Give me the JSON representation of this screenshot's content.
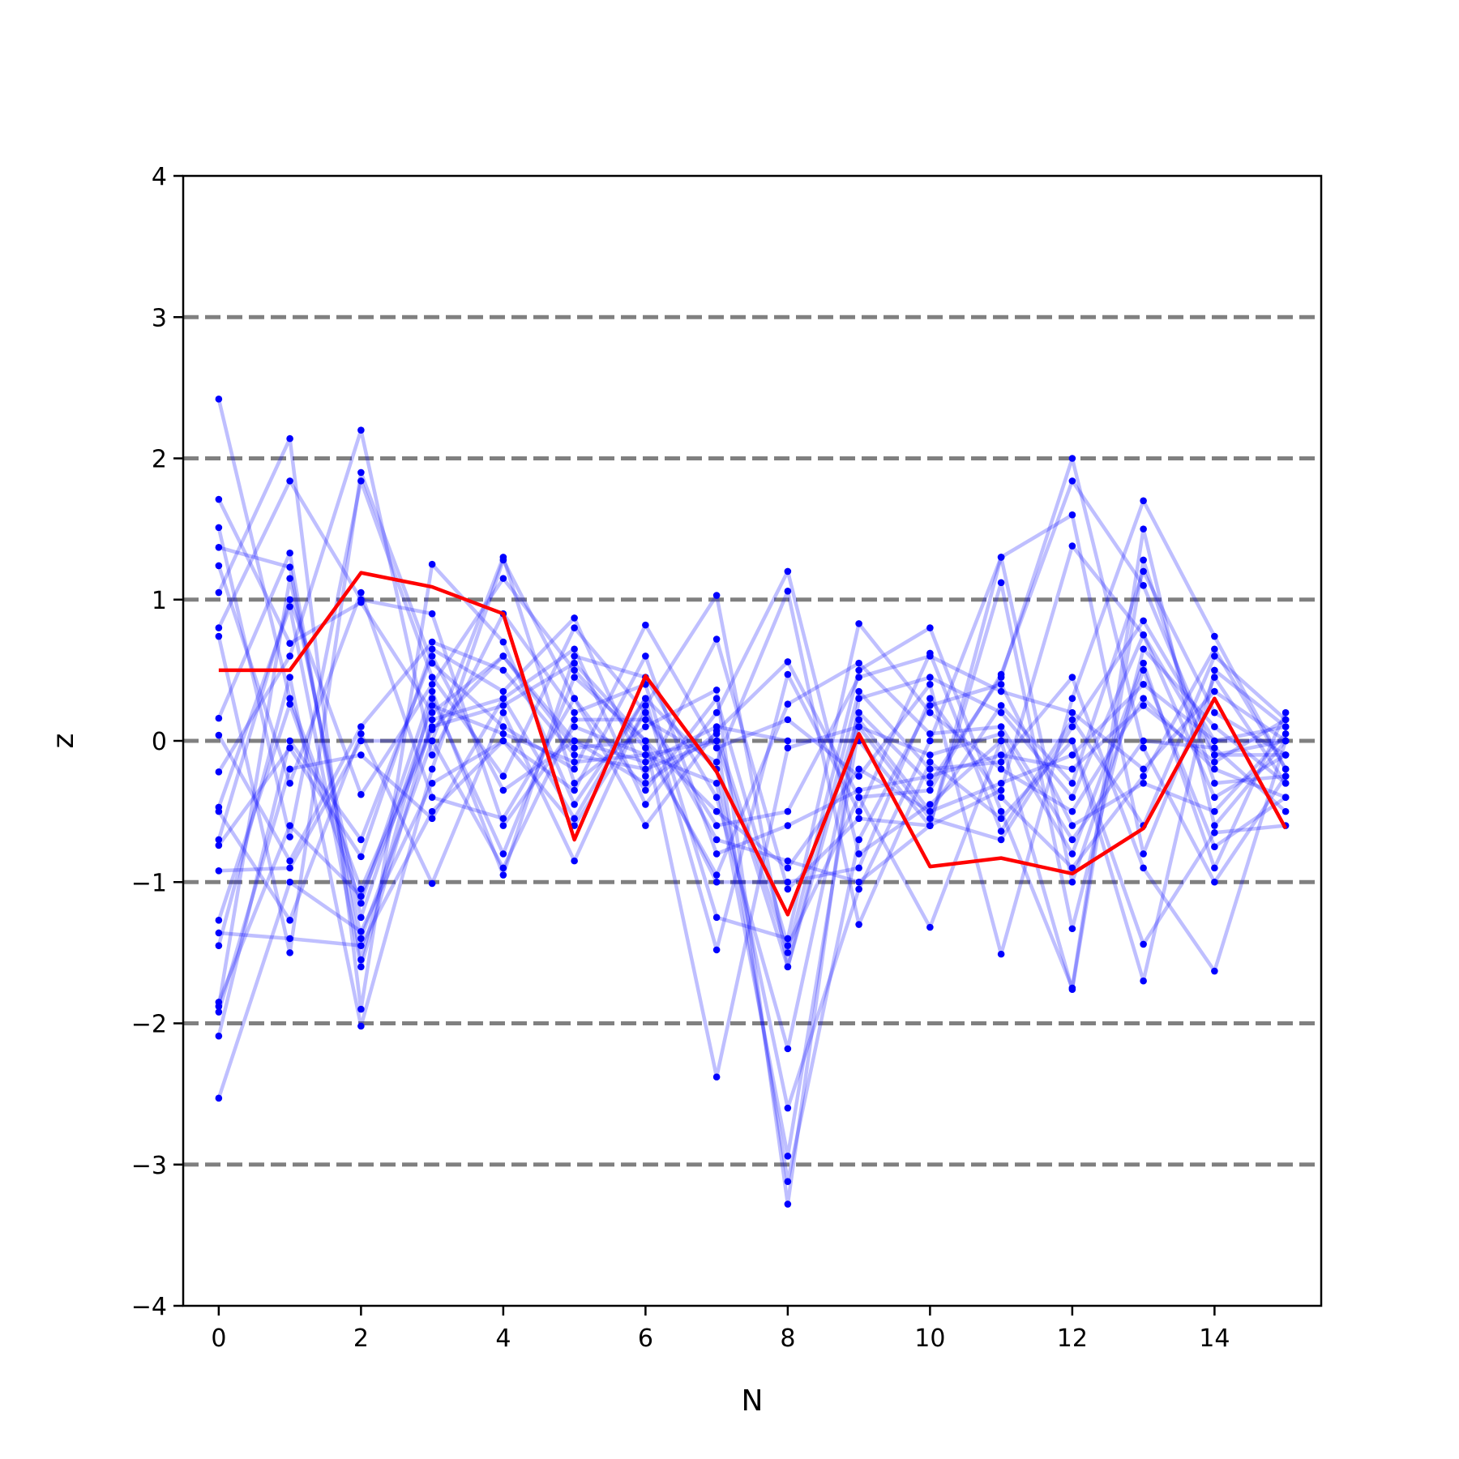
{
  "chart_data": {
    "type": "line",
    "title": "",
    "xlabel": "N",
    "ylabel": "z",
    "xlim": [
      -0.5,
      15.5
    ],
    "ylim": [
      -4,
      4
    ],
    "x_ticks": [
      0,
      2,
      4,
      6,
      8,
      10,
      12,
      14
    ],
    "x_tick_labels": [
      "0",
      "2",
      "4",
      "6",
      "8",
      "10",
      "12",
      "14"
    ],
    "y_ticks": [
      -4,
      -3,
      -2,
      -1,
      0,
      1,
      2,
      3,
      4
    ],
    "y_tick_labels": [
      "−4",
      "−3",
      "−2",
      "−1",
      "0",
      "1",
      "2",
      "3",
      "4"
    ],
    "reference_lines": [
      -3,
      -2,
      -1,
      0,
      1,
      2,
      3
    ],
    "colors": {
      "ensemble": "#0000ff",
      "highlight": "#ff0000",
      "reference": "#808080"
    },
    "x": [
      0,
      1,
      2,
      3,
      4,
      5,
      6,
      7,
      8,
      9,
      10,
      11,
      12,
      13,
      14,
      15
    ],
    "highlight_series": {
      "values": [
        0.5,
        0.5,
        1.19,
        1.09,
        0.9,
        -0.7,
        0.46,
        -0.22,
        -1.23,
        0.05,
        -0.89,
        -0.83,
        -0.94,
        -0.62,
        0.3,
        -0.62
      ]
    },
    "ensemble_series": [
      {
        "values": [
          2.42,
          0.3,
          -1.05,
          0.1,
          0.25,
          0.55,
          0.0,
          -0.5,
          -0.9,
          -0.2,
          -0.5,
          -0.3,
          -0.1,
          0.4,
          0.0,
          0.1
        ]
      },
      {
        "values": [
          1.71,
          0.69,
          0.98,
          0.2,
          0.6,
          0.0,
          -0.3,
          0.05,
          -1.5,
          0.5,
          0.8,
          -0.5,
          -1.75,
          1.5,
          -0.6,
          0.0
        ]
      },
      {
        "values": [
          1.51,
          -0.68,
          1.84,
          0.45,
          -0.25,
          0.8,
          0.2,
          -0.7,
          -0.85,
          -1.0,
          -0.6,
          1.3,
          1.6,
          -0.8,
          0.45,
          -0.3
        ]
      },
      {
        "values": [
          1.37,
          1.23,
          -1.4,
          0.0,
          1.3,
          -0.3,
          0.1,
          0.36,
          -3.28,
          0.3,
          0.45,
          0.2,
          -0.4,
          0.75,
          -0.4,
          -0.1
        ]
      },
      {
        "values": [
          1.24,
          -0.3,
          1.05,
          -0.4,
          -0.55,
          0.3,
          -0.6,
          0.07,
          0.56,
          -0.4,
          -0.35,
          0.47,
          1.84,
          1.1,
          -0.1,
          -0.1
        ]
      },
      {
        "values": [
          1.05,
          2.14,
          -1.9,
          1.25,
          0.7,
          -0.45,
          0.3,
          -1.48,
          0.47,
          -0.5,
          0.62,
          -0.64,
          0.15,
          -0.6,
          0.6,
          0.15
        ]
      },
      {
        "values": [
          0.8,
          1.84,
          1.0,
          0.9,
          -0.6,
          0.1,
          -0.1,
          -0.3,
          -2.94,
          0.1,
          -0.1,
          0.05,
          -0.8,
          0.55,
          -0.9,
          0.2
        ]
      },
      {
        "values": [
          0.74,
          -1.5,
          1.9,
          0.55,
          0.1,
          -0.2,
          0.82,
          -0.05,
          0.15,
          -0.25,
          0.4,
          -1.51,
          0.3,
          1.7,
          0.74,
          -0.2
        ]
      },
      {
        "values": [
          0.16,
          1.33,
          -1.55,
          0.3,
          -0.8,
          0.45,
          0.0,
          -2.38,
          -0.05,
          0.1,
          -0.55,
          -0.7,
          0.1,
          0.85,
          0.0,
          0.0
        ]
      },
      {
        "values": [
          0.04,
          -0.85,
          0.1,
          0.7,
          0.5,
          -0.1,
          -0.2,
          0.0,
          -3.12,
          -0.7,
          0.25,
          0.4,
          -0.6,
          -0.3,
          -0.5,
          0.05
        ]
      },
      {
        "values": [
          -0.22,
          0.6,
          2.2,
          -0.1,
          0.9,
          0.2,
          0.4,
          -1.25,
          -1.4,
          0.83,
          0.2,
          -0.2,
          -0.5,
          0.3,
          -0.2,
          -0.4
        ]
      },
      {
        "values": [
          -0.47,
          0.95,
          -1.6,
          0.15,
          0.3,
          0.65,
          -0.45,
          0.2,
          1.2,
          -0.8,
          -0.45,
          0.0,
          -1.76,
          1.28,
          -0.3,
          -0.25
        ]
      },
      {
        "values": [
          -0.5,
          -1.27,
          0.05,
          -1.01,
          0.2,
          -0.85,
          0.25,
          1.03,
          -1.6,
          0.35,
          -0.2,
          -0.15,
          0.45,
          -0.9,
          -1.63,
          0.0
        ]
      },
      {
        "values": [
          -0.7,
          1.0,
          -0.38,
          0.4,
          1.15,
          0.5,
          -0.05,
          -0.95,
          0.26,
          0.55,
          0.05,
          0.1,
          -0.7,
          0.0,
          -0.05,
          -0.5
        ]
      },
      {
        "values": [
          -0.74,
          -0.05,
          -0.82,
          0.65,
          0.35,
          0.87,
          -0.25,
          0.72,
          -1.05,
          -0.55,
          -0.6,
          1.12,
          -1.33,
          0.65,
          0.1,
          -0.3
        ]
      },
      {
        "values": [
          -0.92,
          -0.9,
          0.0,
          0.0,
          -0.9,
          0.15,
          0.15,
          -0.15,
          1.06,
          -1.3,
          -0.15,
          -0.55,
          0.0,
          -1.44,
          -0.65,
          -0.6
        ]
      },
      {
        "values": [
          -1.27,
          0.26,
          -1.15,
          0.35,
          -0.95,
          0.6,
          0.45,
          -0.4,
          -2.18,
          0.15,
          -0.5,
          0.25,
          -0.3,
          1.2,
          0.2,
          -0.1
        ]
      },
      {
        "values": [
          -1.36,
          -1.4,
          -1.45,
          -0.5,
          0.0,
          -0.6,
          0.2,
          -0.6,
          -0.5,
          0.45,
          0.6,
          0.35,
          0.2,
          -0.2,
          0.35,
          0.0
        ]
      },
      {
        "values": [
          -1.45,
          0.45,
          -2.02,
          -0.2,
          1.28,
          0.3,
          -0.35,
          0.3,
          -1.45,
          -0.4,
          -1.32,
          0.0,
          0.0,
          -1.7,
          0.5,
          0.1
        ]
      },
      {
        "values": [
          -1.85,
          -0.6,
          -1.1,
          0.08,
          0.6,
          -0.05,
          0.0,
          -1.0,
          -1.0,
          -0.9,
          0.3,
          -0.4,
          -0.9,
          -0.25,
          0.65,
          -0.2
        ]
      },
      {
        "values": [
          -1.88,
          1.15,
          -1.25,
          0.25,
          0.05,
          -0.15,
          -0.1,
          0.0,
          -1.6,
          0.2,
          -0.3,
          0.45,
          2.0,
          -0.05,
          -1.0,
          -0.25
        ]
      },
      {
        "values": [
          -1.92,
          -0.2,
          -0.1,
          -0.55,
          0.3,
          -0.55,
          0.3,
          -0.2,
          -2.6,
          -1.05,
          0.0,
          1.3,
          -1.0,
          0.5,
          -0.75,
          -0.4
        ]
      },
      {
        "values": [
          -2.09,
          0.0,
          -0.7,
          0.6,
          -0.35,
          0.0,
          -0.15,
          0.1,
          0.0,
          0.0,
          -0.6,
          -0.35,
          1.38,
          0.75,
          -0.1,
          0.0
        ]
      },
      {
        "values": [
          -2.53,
          -1.0,
          -1.35,
          -0.3,
          0.0,
          -0.35,
          0.6,
          -0.8,
          -0.6,
          -0.35,
          -0.25,
          -0.1,
          -0.2,
          0.25,
          -0.15,
          0.15
        ]
      }
    ]
  }
}
